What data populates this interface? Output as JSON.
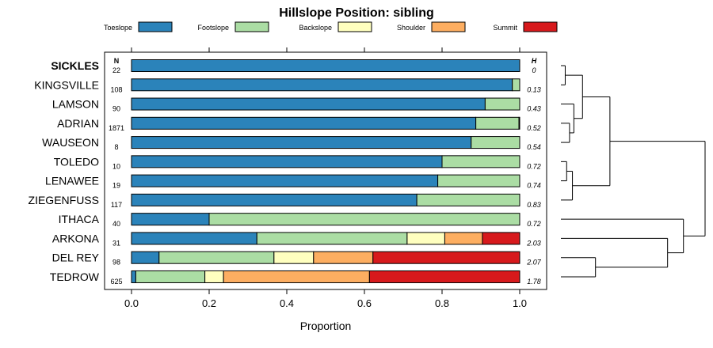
{
  "chart_data": {
    "type": "stacked-bar-horizontal",
    "title": "Hillslope Position: sibling",
    "xlabel": "Proportion",
    "xlim": [
      0,
      1
    ],
    "xticks": [
      "0.0",
      "0.2",
      "0.4",
      "0.6",
      "0.8",
      "1.0"
    ],
    "n_header": "N",
    "h_header": "H",
    "legend": [
      {
        "name": "Toeslope",
        "color": "#2b83ba"
      },
      {
        "name": "Footslope",
        "color": "#abdda4"
      },
      {
        "name": "Backslope",
        "color": "#ffffbf"
      },
      {
        "name": "Shoulder",
        "color": "#fdae61"
      },
      {
        "name": "Summit",
        "color": "#d7191c"
      }
    ],
    "rows": [
      {
        "name": "SICKLES",
        "bold": true,
        "n": "22",
        "h": "0",
        "values": [
          1.0,
          0,
          0,
          0,
          0
        ]
      },
      {
        "name": "KINGSVILLE",
        "n": "108",
        "h": "0.13",
        "values": [
          0.981,
          0.019,
          0,
          0,
          0
        ]
      },
      {
        "name": "LAMSON",
        "n": "90",
        "h": "0.43",
        "values": [
          0.911,
          0.089,
          0,
          0,
          0
        ]
      },
      {
        "name": "ADRIAN",
        "n": "1871",
        "h": "0.52",
        "values": [
          0.887,
          0.111,
          0.002,
          0,
          0
        ]
      },
      {
        "name": "WAUSEON",
        "n": "8",
        "h": "0.54",
        "values": [
          0.875,
          0.125,
          0,
          0,
          0
        ]
      },
      {
        "name": "TOLEDO",
        "n": "10",
        "h": "0.72",
        "values": [
          0.8,
          0.2,
          0,
          0,
          0
        ]
      },
      {
        "name": "LENAWEE",
        "n": "19",
        "h": "0.74",
        "values": [
          0.789,
          0.211,
          0,
          0,
          0
        ]
      },
      {
        "name": "ZIEGENFUSS",
        "n": "117",
        "h": "0.83",
        "values": [
          0.735,
          0.265,
          0,
          0,
          0
        ]
      },
      {
        "name": "ITHACA",
        "n": "40",
        "h": "0.72",
        "values": [
          0.2,
          0.8,
          0,
          0,
          0
        ]
      },
      {
        "name": "ARKONA",
        "n": "31",
        "h": "2.03",
        "values": [
          0.323,
          0.387,
          0.097,
          0.097,
          0.096
        ]
      },
      {
        "name": "DEL REY",
        "n": "98",
        "h": "2.07",
        "values": [
          0.071,
          0.296,
          0.102,
          0.153,
          0.378
        ]
      },
      {
        "name": "TEDROW",
        "n": "625",
        "h": "1.78",
        "values": [
          0.011,
          0.178,
          0.048,
          0.376,
          0.387
        ]
      }
    ],
    "dendrogram": {
      "merges": [
        {
          "a": 0,
          "b": 1,
          "height": 0.03
        },
        {
          "a": 3,
          "b": 4,
          "height": 0.06
        },
        {
          "a": 2,
          "b": -2,
          "height": 0.09
        },
        {
          "a": -1,
          "b": -3,
          "height": 0.15
        },
        {
          "a": 5,
          "b": 6,
          "height": 0.04
        },
        {
          "a": 7,
          "b": -5,
          "height": 0.08
        },
        {
          "a": -4,
          "b": -6,
          "height": 0.34
        },
        {
          "a": 10,
          "b": 11,
          "height": 0.24
        },
        {
          "a": 9,
          "b": -8,
          "height": 0.74
        },
        {
          "a": 8,
          "b": -9,
          "height": 0.85
        },
        {
          "a": -7,
          "b": -10,
          "height": 1.0
        }
      ]
    }
  }
}
